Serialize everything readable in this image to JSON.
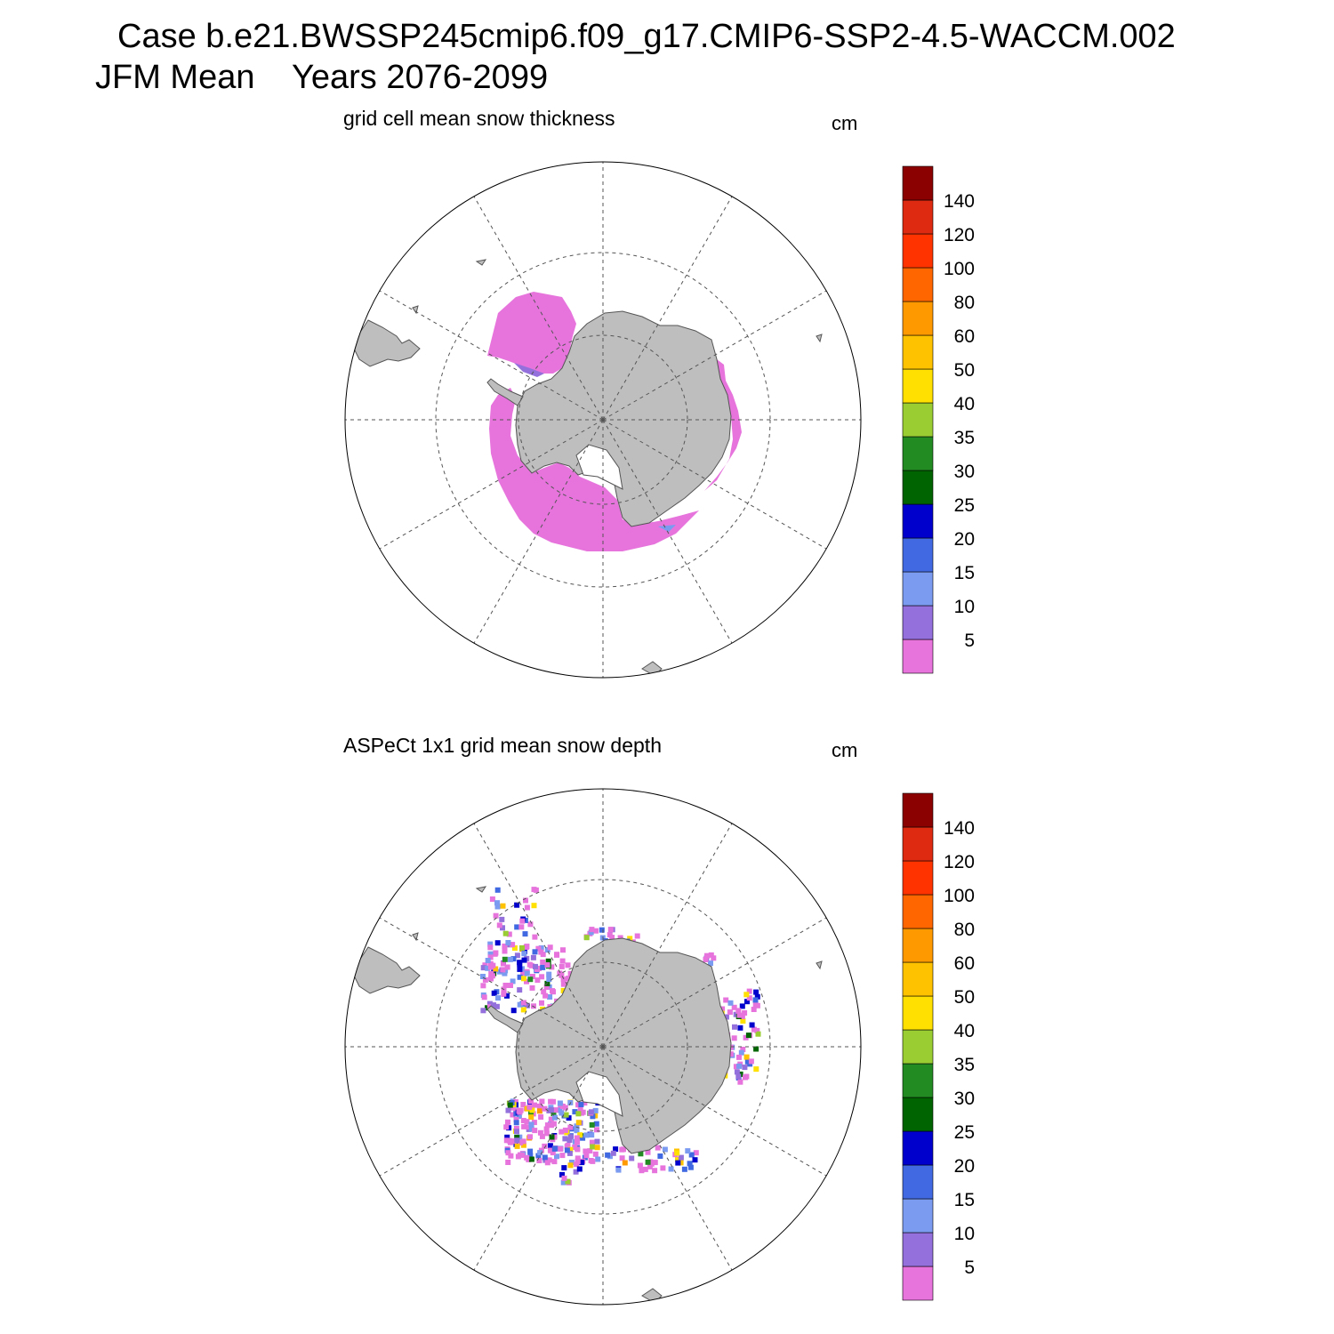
{
  "title": {
    "line1": "Case b.e21.BWSSP245cmip6.f09_g17.CMIP6-SSP2-4.5-WACCM.002",
    "line2": "JFM Mean    Years 2076-2099"
  },
  "colors": {
    "land": "#bebebe",
    "coast": "#555555",
    "grid": "#555555",
    "colorbar": [
      "#e674dc",
      "#9370db",
      "#7b9bf0",
      "#4169e1",
      "#0000cd",
      "#006400",
      "#228b22",
      "#9acd32",
      "#ffe000",
      "#ffc200",
      "#ff9900",
      "#ff6600",
      "#ff3300",
      "#dd2a11",
      "#8b0000"
    ]
  },
  "colorbar": {
    "tick_labels": [
      "5",
      "10",
      "15",
      "20",
      "25",
      "30",
      "35",
      "40",
      "50",
      "60",
      "80",
      "100",
      "120",
      "140"
    ]
  },
  "panels": [
    {
      "title": "grid cell mean snow thickness",
      "units": "cm",
      "field": "model",
      "dominant_range": "0-5 cm"
    },
    {
      "title": "ASPeCt 1x1 grid mean snow depth",
      "units": "cm",
      "field": "obs",
      "dominant_range": "0-40 cm scattered"
    }
  ]
}
